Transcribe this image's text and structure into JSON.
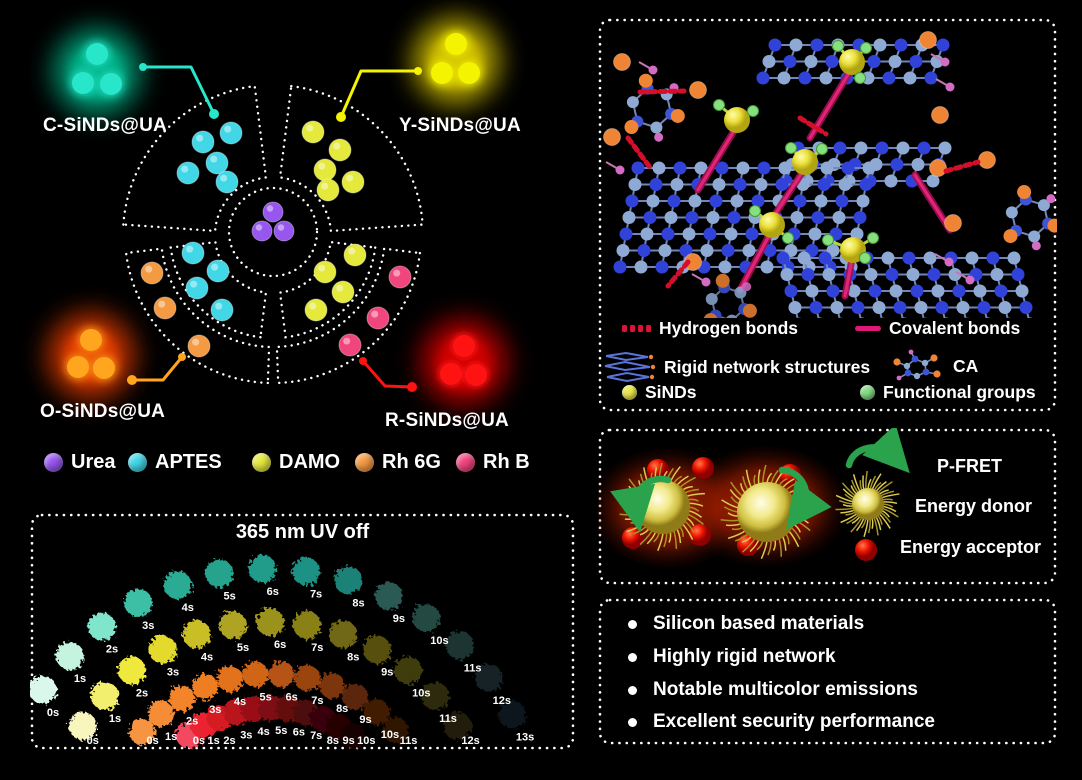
{
  "figure": {
    "samples": [
      {
        "label": "C-SiNDs@UA",
        "dot_color": "#27e6c9",
        "glow_color": "#00b488"
      },
      {
        "label": "Y-SiNDs@UA",
        "dot_color": "#f4f400",
        "glow_color": "#d2c000"
      },
      {
        "label": "O-SiNDs@UA",
        "dot_color": "#ffa51e",
        "glow_color": "#e83c00"
      },
      {
        "label": "R-SiNDs@UA",
        "dot_color": "#ff1212",
        "glow_color": "#cf0000"
      }
    ]
  },
  "materials_legend": {
    "items": [
      {
        "label": "Urea",
        "color": "#9757ef"
      },
      {
        "label": "APTES",
        "color": "#41d7e7"
      },
      {
        "label": "DAMO",
        "color": "#e4e93c"
      },
      {
        "label": "Rh 6G",
        "color": "#f49a43"
      },
      {
        "label": "Rh B",
        "color": "#f1457d"
      }
    ]
  },
  "uv_panel": {
    "title": "365 nm UV off",
    "arcs": [
      {
        "name": "cyan-series",
        "labels": [
          "0s",
          "1s",
          "2s",
          "3s",
          "4s",
          "5s",
          "6s",
          "7s",
          "8s",
          "9s",
          "10s",
          "11s",
          "12s",
          "13s"
        ],
        "colors": [
          "#d9f8eb",
          "#c4f4e0",
          "#7fe6cb",
          "#3cbfa6",
          "#2bab94",
          "#25a38c",
          "#219c8a",
          "#1f9184",
          "#1c8176",
          "#2a5a52",
          "#224842",
          "#1b3531",
          "#142428",
          "#0d181c"
        ]
      },
      {
        "name": "yellow-series",
        "labels": [
          "0s",
          "1s",
          "2s",
          "3s",
          "4s",
          "5s",
          "6s",
          "7s",
          "8s",
          "9s",
          "10s",
          "11s",
          "12s"
        ],
        "colors": [
          "#f8f6bc",
          "#f3ef6e",
          "#efe93c",
          "#e4da2e",
          "#cabe25",
          "#aea321",
          "#9b921d",
          "#8a8119",
          "#6f6715",
          "#575011",
          "#413d0d",
          "#2f2c0a",
          "#201e08"
        ]
      },
      {
        "name": "orange-series",
        "labels": [
          "0s",
          "1s",
          "2s",
          "3s",
          "4s",
          "5s",
          "6s",
          "7s",
          "8s",
          "9s",
          "10s",
          "11s"
        ],
        "colors": [
          "#f79442",
          "#f68c34",
          "#f3842b",
          "#ef7d24",
          "#e3721e",
          "#d16519",
          "#b65313",
          "#9a4410",
          "#7b350c",
          "#5c2709",
          "#431b06",
          "#2d1205"
        ]
      },
      {
        "name": "red-series",
        "labels": [
          "0s",
          "1s",
          "2s",
          "3s",
          "4s",
          "5s",
          "6s",
          "7s",
          "8s",
          "9s",
          "10s"
        ],
        "colors": [
          "#f24a60",
          "#ea2430",
          "#d41a24",
          "#b8141c",
          "#9a1017",
          "#7e0d12",
          "#64090e",
          "#4c070b",
          "#380508",
          "#270406",
          "#190304"
        ]
      }
    ]
  },
  "structure_legend": {
    "items": [
      {
        "label": "Hydrogen bonds",
        "color": "#d81535"
      },
      {
        "label": "Covalent bonds",
        "color": "#e0187a"
      },
      {
        "label": "Rigid network structures",
        "color": "#4a63cf"
      },
      {
        "label": "CA",
        "color": "#4a63cf"
      },
      {
        "label": "SiNDs",
        "color": "#ece84e"
      },
      {
        "label": "Functional groups",
        "color": "#86dc86"
      }
    ]
  },
  "fret_panel": {
    "items": [
      {
        "label": "P-FRET",
        "color": "#2ba24c"
      },
      {
        "label": "Energy donor",
        "color": "#f0e87a"
      },
      {
        "label": "Energy acceptor",
        "color": "#e81800"
      }
    ]
  },
  "key_points": {
    "items": [
      "Silicon based materials",
      "Highly rigid network",
      "Notable multicolor emissions",
      "Excellent security performance"
    ]
  }
}
